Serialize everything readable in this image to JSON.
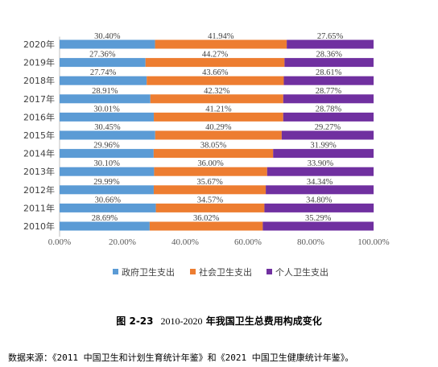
{
  "chart_data": {
    "type": "bar",
    "orientation": "horizontal",
    "stacked": true,
    "categories": [
      "2020年",
      "2019年",
      "2018年",
      "2017年",
      "2016年",
      "2015年",
      "2014年",
      "2013年",
      "2012年",
      "2011年",
      "2010年"
    ],
    "series": [
      {
        "name": "政府卫生支出",
        "color": "#5b9bd5",
        "values": [
          30.4,
          27.36,
          27.74,
          28.91,
          30.01,
          30.45,
          29.96,
          30.1,
          29.99,
          30.66,
          28.69
        ],
        "labels": [
          "30.40%",
          "27.36%",
          "27.74%",
          "28.91%",
          "30.01%",
          "30.45%",
          "29.96%",
          "30.10%",
          "29.99%",
          "30.66%",
          "28.69%"
        ]
      },
      {
        "name": "社会卫生支出",
        "color": "#ed7d31",
        "values": [
          41.94,
          44.27,
          43.66,
          42.32,
          41.21,
          40.29,
          38.05,
          36.0,
          35.67,
          34.57,
          36.02
        ],
        "labels": [
          "41.94%",
          "44.27%",
          "43.66%",
          "42.32%",
          "41.21%",
          "40.29%",
          "38.05%",
          "36.00%",
          "35.67%",
          "34.57%",
          "36.02%"
        ]
      },
      {
        "name": "个人卫生支出",
        "color": "#7030a0",
        "values": [
          27.65,
          28.36,
          28.61,
          28.77,
          28.78,
          29.27,
          31.99,
          33.9,
          34.34,
          34.8,
          35.29
        ],
        "labels": [
          "27.65%",
          "28.36%",
          "28.61%",
          "28.77%",
          "28.78%",
          "29.27%",
          "31.99%",
          "33.90%",
          "34.34%",
          "34.80%",
          "35.29%"
        ]
      }
    ],
    "xlim": [
      0,
      100
    ],
    "xticks": [
      "0.00%",
      "20.00%",
      "40.00%",
      "60.00%",
      "80.00%",
      "100.00%"
    ],
    "grid": false,
    "legend": "bottom"
  },
  "caption": {
    "figure_number": "图 2-23",
    "year_range": "2010-2020",
    "text": " 年我国卫生总费用构成变化"
  },
  "source_note": "数据来源：《2011 中国卫生和计划生育统计年鉴》和《2021 中国卫生健康统计年鉴》。"
}
